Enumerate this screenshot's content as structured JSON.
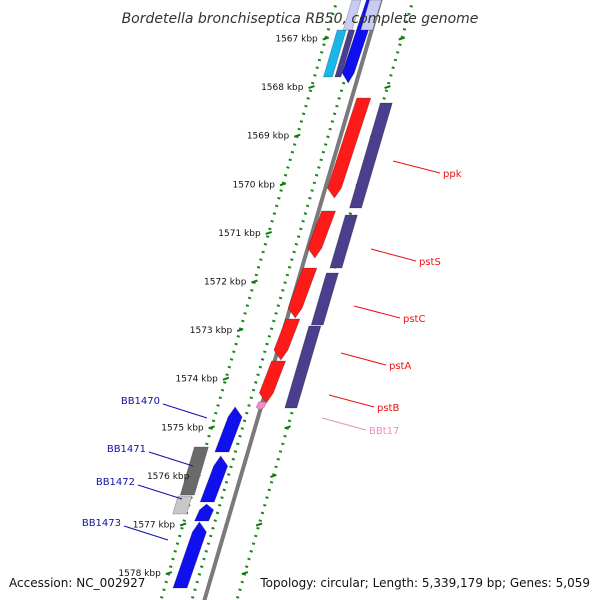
{
  "title": "Bordetella bronchiseptica RB50, complete genome",
  "footer": {
    "accession": "Accession: NC_002927",
    "summary": "Topology: circular; Length: 5,339,179 bp; Genes: 5,059"
  },
  "colors": {
    "backbone": "#7a7a7a",
    "ruler_dots": "#1a8a1a",
    "ruler_ticks": "#0f7a0f",
    "forward_red": "#ff1a1a",
    "forward_blue": "#1010ee",
    "reverse_navy": "#4a3f8c",
    "cyan": "#19b6e8",
    "gray": "#6a6a6a",
    "light_gray": "#c8c8c8",
    "light_blue": "#c8ccf2",
    "pink": "#f08cc8",
    "label_red": "#ee1111",
    "label_blue": "#1010aa",
    "label_pink": "#f08cc8"
  },
  "ruler_labels": [
    "1567 kbp",
    "1568 kbp",
    "1569 kbp",
    "1570 kbp",
    "1571 kbp",
    "1572 kbp",
    "1573 kbp",
    "1574 kbp",
    "1575 kbp",
    "1576 kbp",
    "1577 kbp",
    "1578 kbp"
  ],
  "gene_labels": [
    {
      "text": "ppk",
      "color": "label_red"
    },
    {
      "text": "pstS",
      "color": "label_red"
    },
    {
      "text": "pstC",
      "color": "label_red"
    },
    {
      "text": "pstA",
      "color": "label_red"
    },
    {
      "text": "pstB",
      "color": "label_red"
    },
    {
      "text": "BBt17",
      "color": "label_pink"
    },
    {
      "text": "BB1470",
      "color": "label_blue"
    },
    {
      "text": "BB1471",
      "color": "label_blue"
    },
    {
      "text": "BB1472",
      "color": "label_blue"
    },
    {
      "text": "BB1473",
      "color": "label_blue"
    }
  ]
}
